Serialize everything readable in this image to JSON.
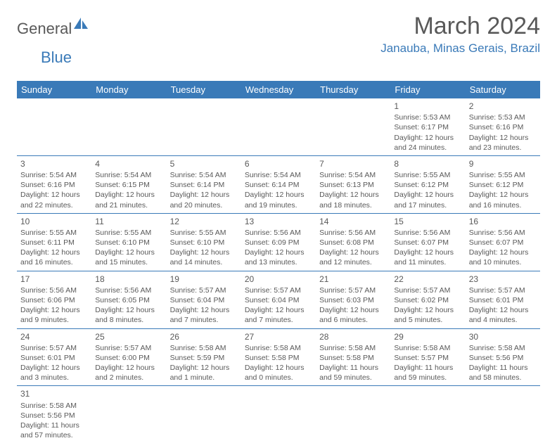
{
  "logo": {
    "part1": "General",
    "part2": "Blue"
  },
  "title": "March 2024",
  "location": "Janauba, Minas Gerais, Brazil",
  "colors": {
    "header_bg": "#3a7ab8",
    "header_text": "#ffffff",
    "body_text": "#595959",
    "accent": "#3a7ab8",
    "row_border": "#3a7ab8",
    "background": "#ffffff"
  },
  "typography": {
    "title_fontsize": 34,
    "location_fontsize": 17,
    "dayheader_fontsize": 13,
    "daynum_fontsize": 12,
    "cell_fontsize": 10.5
  },
  "day_headers": [
    "Sunday",
    "Monday",
    "Tuesday",
    "Wednesday",
    "Thursday",
    "Friday",
    "Saturday"
  ],
  "weeks": [
    [
      null,
      null,
      null,
      null,
      null,
      {
        "n": "1",
        "sunrise": "Sunrise: 5:53 AM",
        "sunset": "Sunset: 6:17 PM",
        "daylight": "Daylight: 12 hours and 24 minutes."
      },
      {
        "n": "2",
        "sunrise": "Sunrise: 5:53 AM",
        "sunset": "Sunset: 6:16 PM",
        "daylight": "Daylight: 12 hours and 23 minutes."
      }
    ],
    [
      {
        "n": "3",
        "sunrise": "Sunrise: 5:54 AM",
        "sunset": "Sunset: 6:16 PM",
        "daylight": "Daylight: 12 hours and 22 minutes."
      },
      {
        "n": "4",
        "sunrise": "Sunrise: 5:54 AM",
        "sunset": "Sunset: 6:15 PM",
        "daylight": "Daylight: 12 hours and 21 minutes."
      },
      {
        "n": "5",
        "sunrise": "Sunrise: 5:54 AM",
        "sunset": "Sunset: 6:14 PM",
        "daylight": "Daylight: 12 hours and 20 minutes."
      },
      {
        "n": "6",
        "sunrise": "Sunrise: 5:54 AM",
        "sunset": "Sunset: 6:14 PM",
        "daylight": "Daylight: 12 hours and 19 minutes."
      },
      {
        "n": "7",
        "sunrise": "Sunrise: 5:54 AM",
        "sunset": "Sunset: 6:13 PM",
        "daylight": "Daylight: 12 hours and 18 minutes."
      },
      {
        "n": "8",
        "sunrise": "Sunrise: 5:55 AM",
        "sunset": "Sunset: 6:12 PM",
        "daylight": "Daylight: 12 hours and 17 minutes."
      },
      {
        "n": "9",
        "sunrise": "Sunrise: 5:55 AM",
        "sunset": "Sunset: 6:12 PM",
        "daylight": "Daylight: 12 hours and 16 minutes."
      }
    ],
    [
      {
        "n": "10",
        "sunrise": "Sunrise: 5:55 AM",
        "sunset": "Sunset: 6:11 PM",
        "daylight": "Daylight: 12 hours and 16 minutes."
      },
      {
        "n": "11",
        "sunrise": "Sunrise: 5:55 AM",
        "sunset": "Sunset: 6:10 PM",
        "daylight": "Daylight: 12 hours and 15 minutes."
      },
      {
        "n": "12",
        "sunrise": "Sunrise: 5:55 AM",
        "sunset": "Sunset: 6:10 PM",
        "daylight": "Daylight: 12 hours and 14 minutes."
      },
      {
        "n": "13",
        "sunrise": "Sunrise: 5:56 AM",
        "sunset": "Sunset: 6:09 PM",
        "daylight": "Daylight: 12 hours and 13 minutes."
      },
      {
        "n": "14",
        "sunrise": "Sunrise: 5:56 AM",
        "sunset": "Sunset: 6:08 PM",
        "daylight": "Daylight: 12 hours and 12 minutes."
      },
      {
        "n": "15",
        "sunrise": "Sunrise: 5:56 AM",
        "sunset": "Sunset: 6:07 PM",
        "daylight": "Daylight: 12 hours and 11 minutes."
      },
      {
        "n": "16",
        "sunrise": "Sunrise: 5:56 AM",
        "sunset": "Sunset: 6:07 PM",
        "daylight": "Daylight: 12 hours and 10 minutes."
      }
    ],
    [
      {
        "n": "17",
        "sunrise": "Sunrise: 5:56 AM",
        "sunset": "Sunset: 6:06 PM",
        "daylight": "Daylight: 12 hours and 9 minutes."
      },
      {
        "n": "18",
        "sunrise": "Sunrise: 5:56 AM",
        "sunset": "Sunset: 6:05 PM",
        "daylight": "Daylight: 12 hours and 8 minutes."
      },
      {
        "n": "19",
        "sunrise": "Sunrise: 5:57 AM",
        "sunset": "Sunset: 6:04 PM",
        "daylight": "Daylight: 12 hours and 7 minutes."
      },
      {
        "n": "20",
        "sunrise": "Sunrise: 5:57 AM",
        "sunset": "Sunset: 6:04 PM",
        "daylight": "Daylight: 12 hours and 7 minutes."
      },
      {
        "n": "21",
        "sunrise": "Sunrise: 5:57 AM",
        "sunset": "Sunset: 6:03 PM",
        "daylight": "Daylight: 12 hours and 6 minutes."
      },
      {
        "n": "22",
        "sunrise": "Sunrise: 5:57 AM",
        "sunset": "Sunset: 6:02 PM",
        "daylight": "Daylight: 12 hours and 5 minutes."
      },
      {
        "n": "23",
        "sunrise": "Sunrise: 5:57 AM",
        "sunset": "Sunset: 6:01 PM",
        "daylight": "Daylight: 12 hours and 4 minutes."
      }
    ],
    [
      {
        "n": "24",
        "sunrise": "Sunrise: 5:57 AM",
        "sunset": "Sunset: 6:01 PM",
        "daylight": "Daylight: 12 hours and 3 minutes."
      },
      {
        "n": "25",
        "sunrise": "Sunrise: 5:57 AM",
        "sunset": "Sunset: 6:00 PM",
        "daylight": "Daylight: 12 hours and 2 minutes."
      },
      {
        "n": "26",
        "sunrise": "Sunrise: 5:58 AM",
        "sunset": "Sunset: 5:59 PM",
        "daylight": "Daylight: 12 hours and 1 minute."
      },
      {
        "n": "27",
        "sunrise": "Sunrise: 5:58 AM",
        "sunset": "Sunset: 5:58 PM",
        "daylight": "Daylight: 12 hours and 0 minutes."
      },
      {
        "n": "28",
        "sunrise": "Sunrise: 5:58 AM",
        "sunset": "Sunset: 5:58 PM",
        "daylight": "Daylight: 11 hours and 59 minutes."
      },
      {
        "n": "29",
        "sunrise": "Sunrise: 5:58 AM",
        "sunset": "Sunset: 5:57 PM",
        "daylight": "Daylight: 11 hours and 59 minutes."
      },
      {
        "n": "30",
        "sunrise": "Sunrise: 5:58 AM",
        "sunset": "Sunset: 5:56 PM",
        "daylight": "Daylight: 11 hours and 58 minutes."
      }
    ],
    [
      {
        "n": "31",
        "sunrise": "Sunrise: 5:58 AM",
        "sunset": "Sunset: 5:56 PM",
        "daylight": "Daylight: 11 hours and 57 minutes."
      },
      null,
      null,
      null,
      null,
      null,
      null
    ]
  ]
}
